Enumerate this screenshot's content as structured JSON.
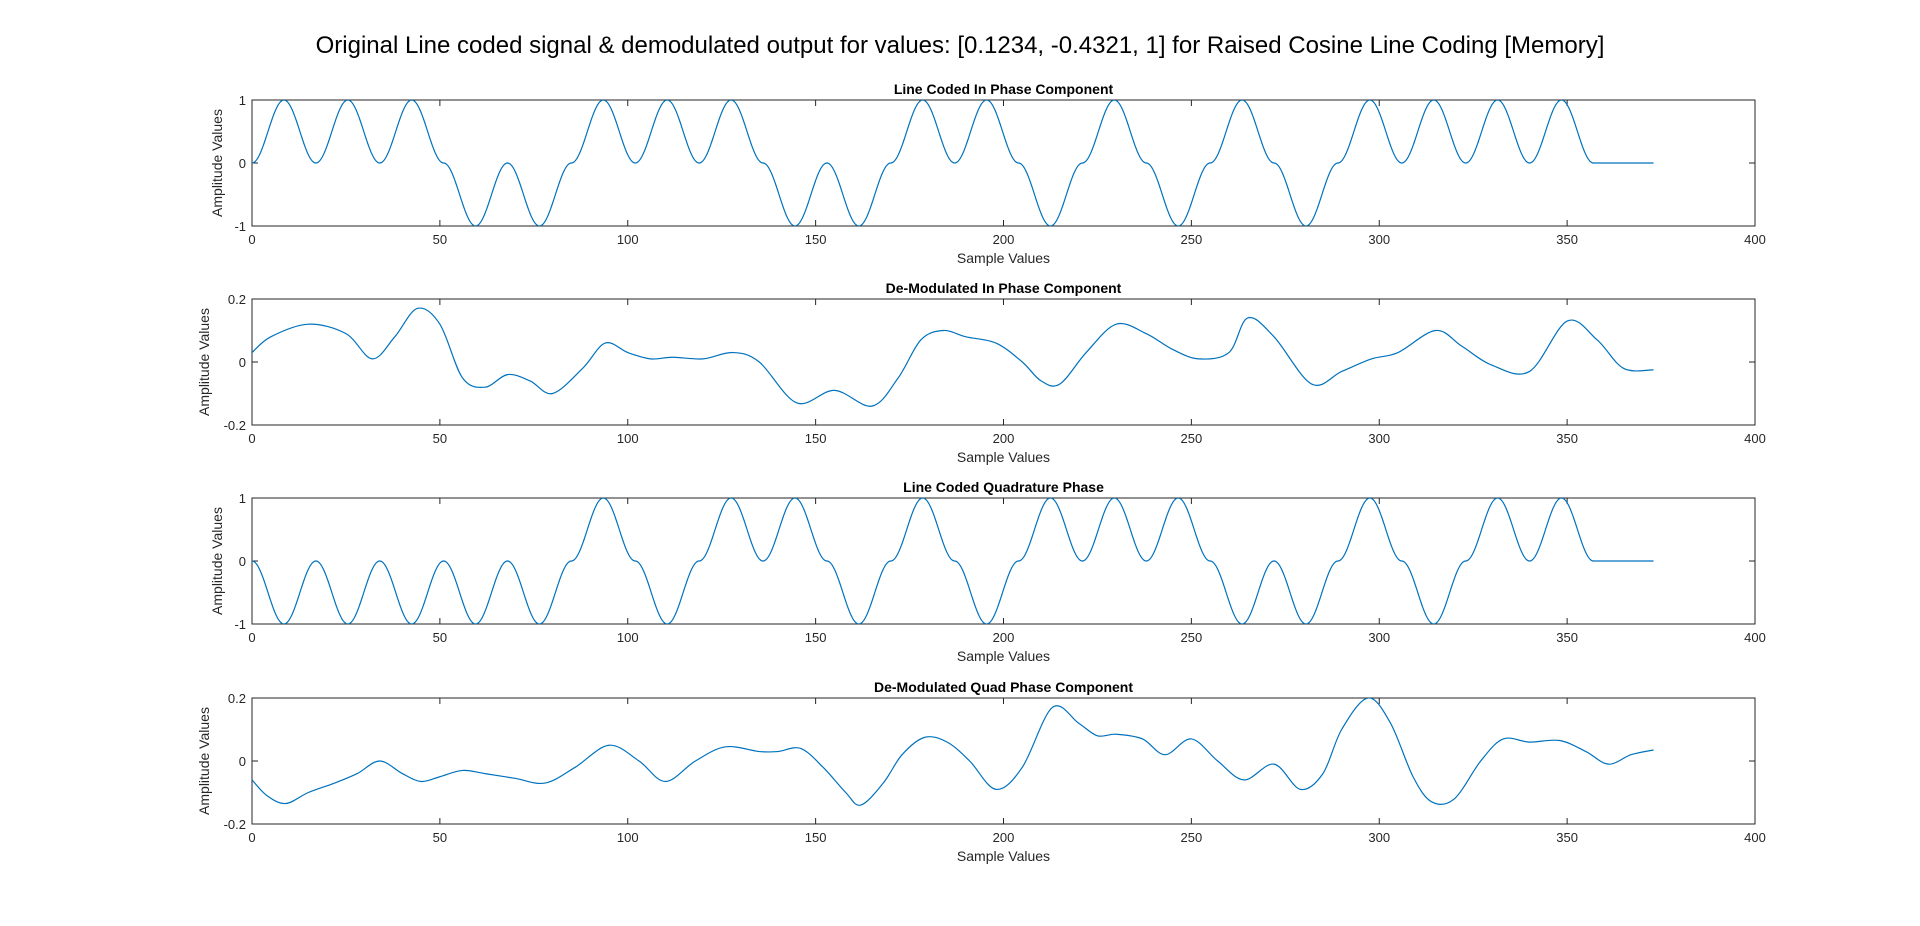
{
  "figure": {
    "suptitle": "Original Line coded signal & demodulated output for values: [0.1234, -0.4321, 1] for Raised Cosine Line Coding [Memory]"
  },
  "colors": {
    "line": "#0072BD",
    "axes": "#262626",
    "background": "#ffffff"
  },
  "chart_data": [
    {
      "type": "line",
      "title": "Line Coded In Phase Component",
      "xlabel": "Sample Values",
      "ylabel": "Amplitude Values",
      "xlim": [
        0,
        400
      ],
      "ylim": [
        -1,
        1
      ],
      "xticks": [
        0,
        50,
        100,
        150,
        200,
        250,
        300,
        350,
        400
      ],
      "yticks": [
        -1,
        0,
        1
      ],
      "grid": false,
      "pulse_width": 8.5,
      "signal_end": 373,
      "pulse_positions": [
        8.5,
        25.5,
        42.5,
        59.5,
        76.5,
        93.5,
        110.5,
        127.5,
        144.5,
        161.5,
        178.5,
        195.5,
        212.5,
        229.5,
        246.5,
        263.5,
        280.5,
        297.5,
        314.5,
        331.5,
        348.5
      ],
      "pulse_signs": [
        1,
        1,
        1,
        -1,
        -1,
        1,
        1,
        1,
        -1,
        -1,
        1,
        1,
        -1,
        1,
        -1,
        1,
        -1,
        1,
        1,
        1,
        1
      ]
    },
    {
      "type": "line",
      "title": "De-Modulated In Phase Component",
      "xlabel": "Sample Values",
      "ylabel": "Amplitude Values",
      "xlim": [
        0,
        400
      ],
      "ylim": [
        -0.2,
        0.2
      ],
      "xticks": [
        0,
        50,
        100,
        150,
        200,
        250,
        300,
        350,
        400
      ],
      "yticks": [
        -0.2,
        0,
        0.2
      ],
      "grid": false,
      "x": [
        0,
        5,
        15,
        25,
        32,
        38,
        44,
        50,
        56,
        62,
        68,
        74,
        80,
        88,
        94,
        100,
        106,
        112,
        120,
        128,
        135,
        145,
        155,
        165,
        172,
        178,
        184,
        190,
        198,
        205,
        210,
        215,
        222,
        230,
        238,
        245,
        252,
        260,
        265,
        272,
        282,
        290,
        298,
        305,
        315,
        322,
        330,
        340,
        350,
        358,
        365,
        373
      ],
      "y": [
        0.03,
        0.08,
        0.12,
        0.09,
        0.01,
        0.08,
        0.17,
        0.12,
        -0.05,
        -0.08,
        -0.04,
        -0.06,
        -0.1,
        -0.02,
        0.06,
        0.03,
        0.01,
        0.015,
        0.01,
        0.03,
        0.0,
        -0.13,
        -0.09,
        -0.14,
        -0.05,
        0.07,
        0.1,
        0.08,
        0.06,
        0.0,
        -0.06,
        -0.07,
        0.03,
        0.12,
        0.09,
        0.04,
        0.01,
        0.03,
        0.14,
        0.08,
        -0.07,
        -0.03,
        0.01,
        0.03,
        0.1,
        0.05,
        -0.01,
        -0.03,
        0.13,
        0.07,
        -0.02,
        -0.025
      ]
    },
    {
      "type": "line",
      "title": "Line Coded Quadrature Phase",
      "xlabel": "Sample Values",
      "ylabel": "Amplitude Values",
      "xlim": [
        0,
        400
      ],
      "ylim": [
        -1,
        1
      ],
      "xticks": [
        0,
        50,
        100,
        150,
        200,
        250,
        300,
        350,
        400
      ],
      "yticks": [
        -1,
        0,
        1
      ],
      "grid": false,
      "pulse_width": 8.5,
      "signal_end": 373,
      "pulse_positions": [
        8.5,
        25.5,
        42.5,
        59.5,
        76.5,
        93.5,
        110.5,
        127.5,
        144.5,
        161.5,
        178.5,
        195.5,
        212.5,
        229.5,
        246.5,
        263.5,
        280.5,
        297.5,
        314.5,
        331.5,
        348.5
      ],
      "pulse_signs": [
        -1,
        -1,
        -1,
        -1,
        -1,
        1,
        -1,
        1,
        1,
        -1,
        1,
        -1,
        1,
        1,
        1,
        -1,
        -1,
        1,
        -1,
        1,
        1
      ]
    },
    {
      "type": "line",
      "title": "De-Modulated Quad Phase Component",
      "xlabel": "Sample Values",
      "ylabel": "Amplitude Values",
      "xlim": [
        0,
        400
      ],
      "ylim": [
        -0.2,
        0.2
      ],
      "xticks": [
        0,
        50,
        100,
        150,
        200,
        250,
        300,
        350,
        400
      ],
      "yticks": [
        -0.2,
        0,
        0.2
      ],
      "grid": false,
      "x": [
        0,
        4,
        9,
        15,
        22,
        28,
        34,
        40,
        45,
        50,
        56,
        62,
        70,
        78,
        86,
        95,
        103,
        110,
        118,
        126,
        135,
        140,
        146,
        152,
        158,
        162,
        168,
        173,
        179,
        185,
        191,
        198,
        205,
        213,
        220,
        225,
        230,
        237,
        243,
        250,
        257,
        264,
        272,
        279,
        285,
        290,
        297,
        303,
        309,
        314,
        320,
        327,
        333,
        340,
        348,
        355,
        361,
        367,
        373
      ],
      "y": [
        -0.06,
        -0.11,
        -0.135,
        -0.1,
        -0.07,
        -0.04,
        0.0,
        -0.04,
        -0.065,
        -0.05,
        -0.03,
        -0.04,
        -0.055,
        -0.07,
        -0.02,
        0.05,
        0.0,
        -0.065,
        0.0,
        0.045,
        0.03,
        0.03,
        0.04,
        -0.02,
        -0.1,
        -0.14,
        -0.07,
        0.02,
        0.075,
        0.06,
        0.0,
        -0.09,
        -0.02,
        0.17,
        0.12,
        0.08,
        0.085,
        0.07,
        0.02,
        0.07,
        0.0,
        -0.06,
        -0.01,
        -0.09,
        -0.04,
        0.1,
        0.2,
        0.12,
        -0.05,
        -0.13,
        -0.12,
        0.0,
        0.07,
        0.06,
        0.065,
        0.03,
        -0.01,
        0.02,
        0.035
      ]
    }
  ]
}
